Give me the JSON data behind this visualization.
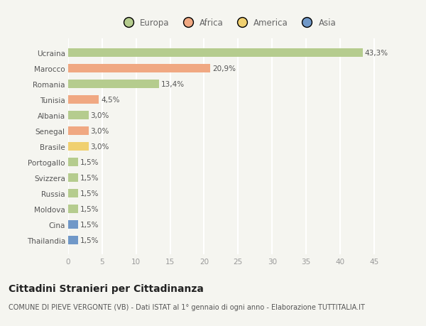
{
  "countries": [
    "Ucraina",
    "Marocco",
    "Romania",
    "Tunisia",
    "Albania",
    "Senegal",
    "Brasile",
    "Portogallo",
    "Svizzera",
    "Russia",
    "Moldova",
    "Cina",
    "Thailandia"
  ],
  "values": [
    43.3,
    20.9,
    13.4,
    4.5,
    3.0,
    3.0,
    3.0,
    1.5,
    1.5,
    1.5,
    1.5,
    1.5,
    1.5
  ],
  "labels": [
    "43,3%",
    "20,9%",
    "13,4%",
    "4,5%",
    "3,0%",
    "3,0%",
    "3,0%",
    "1,5%",
    "1,5%",
    "1,5%",
    "1,5%",
    "1,5%",
    "1,5%"
  ],
  "continents": [
    "Europa",
    "Africa",
    "Europa",
    "Africa",
    "Europa",
    "Africa",
    "America",
    "Europa",
    "Europa",
    "Europa",
    "Europa",
    "Asia",
    "Asia"
  ],
  "colors": {
    "Europa": "#b5cc8e",
    "Africa": "#f0a882",
    "America": "#f0d070",
    "Asia": "#7098c8"
  },
  "xlim": [
    0,
    47
  ],
  "xticks": [
    0,
    5,
    10,
    15,
    20,
    25,
    30,
    35,
    40,
    45
  ],
  "title": "Cittadini Stranieri per Cittadinanza",
  "subtitle": "COMUNE DI PIEVE VERGONTE (VB) - Dati ISTAT al 1° gennaio di ogni anno - Elaborazione TUTTITALIA.IT",
  "background_color": "#f5f5f0",
  "grid_color": "#ffffff",
  "bar_height": 0.55,
  "title_fontsize": 10,
  "subtitle_fontsize": 7,
  "label_fontsize": 7.5,
  "tick_fontsize": 7.5,
  "legend_fontsize": 8.5,
  "legend_order": [
    "Europa",
    "Africa",
    "America",
    "Asia"
  ]
}
